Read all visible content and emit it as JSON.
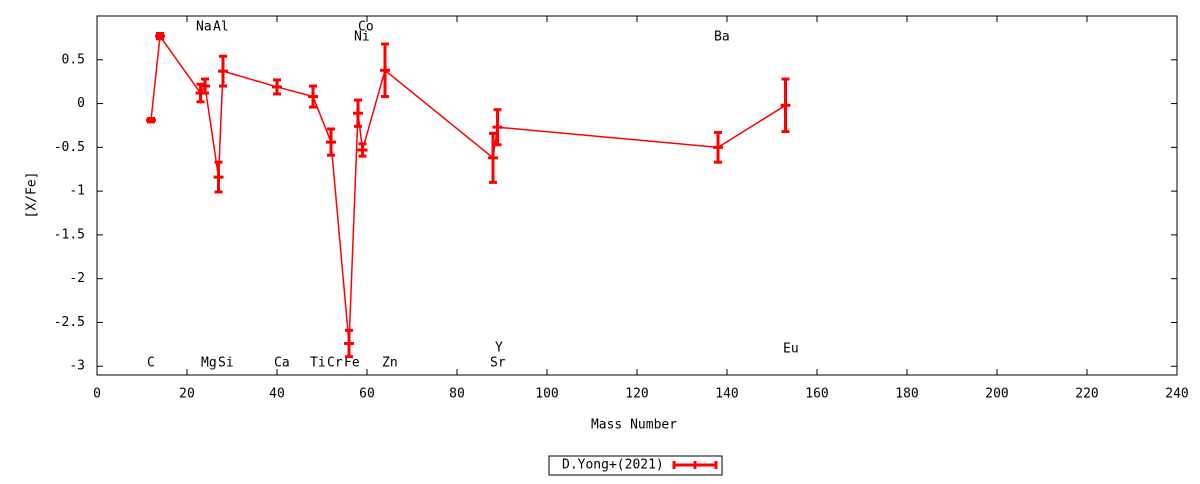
{
  "chart_data": {
    "type": "errorbar-line",
    "xlabel": "Mass Number",
    "ylabel": "[X/Fe]",
    "xlim": [
      0,
      240
    ],
    "ylim": [
      -3.1,
      1
    ],
    "xticks": [
      0,
      20,
      40,
      60,
      80,
      100,
      120,
      140,
      160,
      180,
      200,
      220,
      240
    ],
    "yticks": [
      0.5,
      0,
      -0.5,
      -1,
      -1.5,
      -2,
      -2.5,
      -3
    ],
    "grid": false,
    "legend": "bottom",
    "series": [
      {
        "name": "D.Yong+(2021)",
        "color": "#ff0000",
        "x": [
          12,
          14,
          23,
          24,
          27,
          28,
          40,
          48,
          52,
          56,
          58,
          59,
          64,
          88,
          89,
          138,
          153
        ],
        "values": [
          -0.19,
          0.77,
          0.12,
          0.2,
          -0.84,
          0.37,
          0.19,
          0.08,
          -0.44,
          -2.74,
          -0.11,
          -0.53,
          0.38,
          -0.62,
          -0.27,
          -0.5,
          -0.02
        ],
        "errors": [
          0.02,
          0.03,
          0.1,
          0.08,
          0.17,
          0.17,
          0.08,
          0.12,
          0.15,
          0.15,
          0.15,
          0.07,
          0.3,
          0.28,
          0.2,
          0.17,
          0.3
        ]
      }
    ],
    "annotations": [
      "Na",
      "Al",
      "Co",
      "Ni",
      "Ba",
      "C",
      "Mg",
      "Si",
      "Ca",
      "Ti",
      "Cr",
      "Fe",
      "Zn",
      "Y",
      "Sr",
      "Eu"
    ]
  }
}
